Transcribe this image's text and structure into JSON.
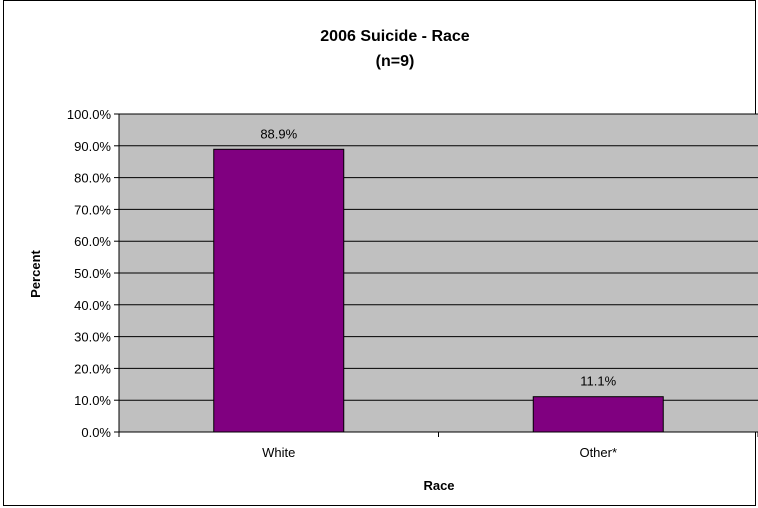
{
  "chart_data": {
    "type": "bar",
    "title": "2006 Suicide - Race",
    "subtitle": "(n=9)",
    "xlabel": "Race",
    "ylabel": "Percent",
    "categories": [
      "White",
      "Other*"
    ],
    "values": [
      88.9,
      11.1
    ],
    "data_labels": [
      "88.9%",
      "11.1%"
    ],
    "ylim": [
      0,
      100
    ],
    "yticks": [
      {
        "value": 0,
        "label": "0.0%"
      },
      {
        "value": 10,
        "label": "10.0%"
      },
      {
        "value": 20,
        "label": "20.0%"
      },
      {
        "value": 30,
        "label": "30.0%"
      },
      {
        "value": 40,
        "label": "40.0%"
      },
      {
        "value": 50,
        "label": "50.0%"
      },
      {
        "value": 60,
        "label": "60.0%"
      },
      {
        "value": 70,
        "label": "70.0%"
      },
      {
        "value": 80,
        "label": "80.0%"
      },
      {
        "value": 90,
        "label": "90.0%"
      },
      {
        "value": 100,
        "label": "100.0%"
      }
    ],
    "grid": true,
    "legend": "none",
    "colors": {
      "bar": "#800080",
      "plot_background": "#c0c0c0",
      "gridline": "#000000"
    }
  }
}
